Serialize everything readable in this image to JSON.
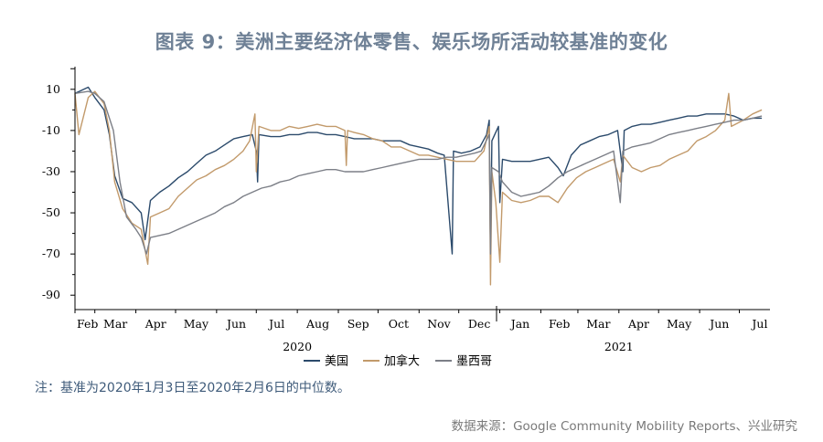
{
  "title": "图表 9：美洲主要经济体零售、娱乐场所活动较基准的变化",
  "note": "注：基准为2020年1月3日至2020年2月6日的中位数。",
  "source": "数据来源：Google Community Mobility Reports、兴业研究",
  "chart_data": {
    "type": "line",
    "y_ticks": [
      10,
      -10,
      -30,
      -50,
      -70,
      -90
    ],
    "ylim": [
      -97,
      21
    ],
    "x_ticks": [
      "Feb",
      "Mar",
      "Apr",
      "May",
      "Jun",
      "Jul",
      "Aug",
      "Sep",
      "Oct",
      "Nov",
      "Dec",
      "Jan",
      "Feb",
      "Mar",
      "Apr",
      "May",
      "Jun",
      "Jul"
    ],
    "x_tick_months": [
      "2020-02",
      "2020-03",
      "2020-04",
      "2020-05",
      "2020-06",
      "2020-07",
      "2020-08",
      "2020-09",
      "2020-10",
      "2020-11",
      "2020-12",
      "2021-01",
      "2021-02",
      "2021-03",
      "2021-04",
      "2021-05",
      "2021-06",
      "2021-07"
    ],
    "year_labels": [
      {
        "label": "2020",
        "month": "2020-08"
      },
      {
        "label": "2021",
        "month": "2021-04"
      }
    ],
    "xlim": [
      "2020-02-15",
      "2021-07-20"
    ],
    "legend_position": "bottom-center",
    "series": [
      {
        "name": "美国",
        "color": "#2b4a6b",
        "points": [
          [
            "2020-02-15",
            8
          ],
          [
            "2020-02-25",
            11
          ],
          [
            "2020-03-01",
            6
          ],
          [
            "2020-03-08",
            0
          ],
          [
            "2020-03-12",
            -12
          ],
          [
            "2020-03-16",
            -32
          ],
          [
            "2020-03-22",
            -43
          ],
          [
            "2020-03-29",
            -45
          ],
          [
            "2020-04-05",
            -50
          ],
          [
            "2020-04-08",
            -63
          ],
          [
            "2020-04-12",
            -44
          ],
          [
            "2020-04-19",
            -40
          ],
          [
            "2020-04-26",
            -37
          ],
          [
            "2020-05-03",
            -33
          ],
          [
            "2020-05-10",
            -30
          ],
          [
            "2020-05-17",
            -26
          ],
          [
            "2020-05-24",
            -22
          ],
          [
            "2020-05-31",
            -20
          ],
          [
            "2020-06-07",
            -17
          ],
          [
            "2020-06-14",
            -14
          ],
          [
            "2020-06-21",
            -13
          ],
          [
            "2020-06-28",
            -12
          ],
          [
            "2020-07-01",
            -20
          ],
          [
            "2020-07-02",
            -35
          ],
          [
            "2020-07-03",
            -12
          ],
          [
            "2020-07-12",
            -13
          ],
          [
            "2020-07-19",
            -13
          ],
          [
            "2020-07-26",
            -12
          ],
          [
            "2020-08-02",
            -12
          ],
          [
            "2020-08-09",
            -11
          ],
          [
            "2020-08-16",
            -11
          ],
          [
            "2020-08-23",
            -12
          ],
          [
            "2020-08-30",
            -12
          ],
          [
            "2020-09-06",
            -13
          ],
          [
            "2020-09-13",
            -14
          ],
          [
            "2020-09-20",
            -14
          ],
          [
            "2020-09-27",
            -14
          ],
          [
            "2020-10-04",
            -15
          ],
          [
            "2020-10-11",
            -15
          ],
          [
            "2020-10-18",
            -15
          ],
          [
            "2020-10-25",
            -17
          ],
          [
            "2020-11-01",
            -18
          ],
          [
            "2020-11-08",
            -19
          ],
          [
            "2020-11-15",
            -21
          ],
          [
            "2020-11-20",
            -22
          ],
          [
            "2020-11-26",
            -70
          ],
          [
            "2020-11-27",
            -20
          ],
          [
            "2020-12-03",
            -21
          ],
          [
            "2020-12-10",
            -20
          ],
          [
            "2020-12-17",
            -18
          ],
          [
            "2020-12-22",
            -12
          ],
          [
            "2020-12-24",
            -5
          ],
          [
            "2020-12-25",
            -70
          ],
          [
            "2020-12-26",
            -15
          ],
          [
            "2020-12-31",
            -8
          ],
          [
            "2021-01-01",
            -45
          ],
          [
            "2021-01-03",
            -24
          ],
          [
            "2021-01-10",
            -25
          ],
          [
            "2021-01-17",
            -25
          ],
          [
            "2021-01-24",
            -25
          ],
          [
            "2021-01-31",
            -24
          ],
          [
            "2021-02-07",
            -23
          ],
          [
            "2021-02-14",
            -28
          ],
          [
            "2021-02-18",
            -32
          ],
          [
            "2021-02-24",
            -22
          ],
          [
            "2021-03-03",
            -17
          ],
          [
            "2021-03-10",
            -15
          ],
          [
            "2021-03-17",
            -13
          ],
          [
            "2021-03-24",
            -12
          ],
          [
            "2021-03-31",
            -10
          ],
          [
            "2021-04-04",
            -30
          ],
          [
            "2021-04-05",
            -10
          ],
          [
            "2021-04-11",
            -8
          ],
          [
            "2021-04-18",
            -7
          ],
          [
            "2021-04-25",
            -7
          ],
          [
            "2021-05-02",
            -6
          ],
          [
            "2021-05-09",
            -5
          ],
          [
            "2021-05-16",
            -4
          ],
          [
            "2021-05-23",
            -3
          ],
          [
            "2021-05-30",
            -3
          ],
          [
            "2021-06-06",
            -2
          ],
          [
            "2021-06-13",
            -2
          ],
          [
            "2021-06-20",
            -2
          ],
          [
            "2021-06-27",
            -3
          ],
          [
            "2021-07-04",
            -5
          ],
          [
            "2021-07-11",
            -4
          ],
          [
            "2021-07-18",
            -4
          ]
        ]
      },
      {
        "name": "加拿大",
        "color": "#c29a6b",
        "points": [
          [
            "2020-02-15",
            8
          ],
          [
            "2020-02-18",
            -12
          ],
          [
            "2020-02-25",
            6
          ],
          [
            "2020-03-01",
            9
          ],
          [
            "2020-03-08",
            3
          ],
          [
            "2020-03-12",
            -10
          ],
          [
            "2020-03-16",
            -35
          ],
          [
            "2020-03-22",
            -48
          ],
          [
            "2020-03-29",
            -55
          ],
          [
            "2020-04-05",
            -58
          ],
          [
            "2020-04-10",
            -75
          ],
          [
            "2020-04-12",
            -52
          ],
          [
            "2020-04-19",
            -50
          ],
          [
            "2020-04-26",
            -48
          ],
          [
            "2020-05-03",
            -42
          ],
          [
            "2020-05-10",
            -38
          ],
          [
            "2020-05-17",
            -34
          ],
          [
            "2020-05-24",
            -32
          ],
          [
            "2020-05-31",
            -29
          ],
          [
            "2020-06-07",
            -27
          ],
          [
            "2020-06-14",
            -24
          ],
          [
            "2020-06-21",
            -20
          ],
          [
            "2020-06-26",
            -15
          ],
          [
            "2020-06-30",
            -2
          ],
          [
            "2020-07-01",
            -30
          ],
          [
            "2020-07-03",
            -8
          ],
          [
            "2020-07-12",
            -10
          ],
          [
            "2020-07-19",
            -10
          ],
          [
            "2020-07-26",
            -8
          ],
          [
            "2020-08-02",
            -9
          ],
          [
            "2020-08-09",
            -8
          ],
          [
            "2020-08-16",
            -7
          ],
          [
            "2020-08-23",
            -8
          ],
          [
            "2020-08-30",
            -8
          ],
          [
            "2020-09-06",
            -10
          ],
          [
            "2020-09-07",
            -27
          ],
          [
            "2020-09-08",
            -10
          ],
          [
            "2020-09-13",
            -11
          ],
          [
            "2020-09-20",
            -12
          ],
          [
            "2020-09-27",
            -14
          ],
          [
            "2020-10-04",
            -15
          ],
          [
            "2020-10-11",
            -18
          ],
          [
            "2020-10-18",
            -18
          ],
          [
            "2020-10-25",
            -20
          ],
          [
            "2020-11-01",
            -22
          ],
          [
            "2020-11-08",
            -22
          ],
          [
            "2020-11-15",
            -23
          ],
          [
            "2020-11-22",
            -24
          ],
          [
            "2020-11-29",
            -25
          ],
          [
            "2020-12-06",
            -25
          ],
          [
            "2020-12-13",
            -25
          ],
          [
            "2020-12-20",
            -20
          ],
          [
            "2020-12-24",
            -8
          ],
          [
            "2020-12-25",
            -85
          ],
          [
            "2020-12-26",
            -30
          ],
          [
            "2020-12-29",
            -45
          ],
          [
            "2021-01-01",
            -74
          ],
          [
            "2021-01-03",
            -40
          ],
          [
            "2021-01-10",
            -44
          ],
          [
            "2021-01-17",
            -45
          ],
          [
            "2021-01-24",
            -44
          ],
          [
            "2021-01-31",
            -42
          ],
          [
            "2021-02-07",
            -42
          ],
          [
            "2021-02-14",
            -45
          ],
          [
            "2021-02-21",
            -38
          ],
          [
            "2021-02-28",
            -33
          ],
          [
            "2021-03-07",
            -30
          ],
          [
            "2021-03-14",
            -28
          ],
          [
            "2021-03-21",
            -26
          ],
          [
            "2021-03-28",
            -24
          ],
          [
            "2021-04-02",
            -35
          ],
          [
            "2021-04-04",
            -22
          ],
          [
            "2021-04-11",
            -28
          ],
          [
            "2021-04-18",
            -30
          ],
          [
            "2021-04-25",
            -28
          ],
          [
            "2021-05-02",
            -27
          ],
          [
            "2021-05-09",
            -24
          ],
          [
            "2021-05-16",
            -22
          ],
          [
            "2021-05-23",
            -20
          ],
          [
            "2021-05-30",
            -15
          ],
          [
            "2021-06-06",
            -13
          ],
          [
            "2021-06-13",
            -10
          ],
          [
            "2021-06-20",
            -5
          ],
          [
            "2021-06-23",
            8
          ],
          [
            "2021-06-25",
            -8
          ],
          [
            "2021-07-04",
            -5
          ],
          [
            "2021-07-11",
            -2
          ],
          [
            "2021-07-18",
            0
          ]
        ]
      },
      {
        "name": "墨西哥",
        "color": "#7c7f87",
        "points": [
          [
            "2020-02-15",
            8
          ],
          [
            "2020-02-25",
            9
          ],
          [
            "2020-03-01",
            8
          ],
          [
            "2020-03-08",
            4
          ],
          [
            "2020-03-15",
            -10
          ],
          [
            "2020-03-20",
            -35
          ],
          [
            "2020-03-25",
            -52
          ],
          [
            "2020-04-01",
            -58
          ],
          [
            "2020-04-05",
            -62
          ],
          [
            "2020-04-09",
            -70
          ],
          [
            "2020-04-12",
            -62
          ],
          [
            "2020-04-19",
            -61
          ],
          [
            "2020-04-26",
            -60
          ],
          [
            "2020-05-03",
            -58
          ],
          [
            "2020-05-10",
            -56
          ],
          [
            "2020-05-17",
            -54
          ],
          [
            "2020-05-24",
            -52
          ],
          [
            "2020-05-31",
            -50
          ],
          [
            "2020-06-07",
            -47
          ],
          [
            "2020-06-14",
            -45
          ],
          [
            "2020-06-21",
            -42
          ],
          [
            "2020-06-28",
            -40
          ],
          [
            "2020-07-05",
            -38
          ],
          [
            "2020-07-12",
            -37
          ],
          [
            "2020-07-19",
            -35
          ],
          [
            "2020-07-26",
            -34
          ],
          [
            "2020-08-02",
            -32
          ],
          [
            "2020-08-09",
            -31
          ],
          [
            "2020-08-16",
            -30
          ],
          [
            "2020-08-23",
            -29
          ],
          [
            "2020-08-30",
            -29
          ],
          [
            "2020-09-06",
            -30
          ],
          [
            "2020-09-13",
            -30
          ],
          [
            "2020-09-20",
            -30
          ],
          [
            "2020-09-27",
            -29
          ],
          [
            "2020-10-04",
            -28
          ],
          [
            "2020-10-11",
            -27
          ],
          [
            "2020-10-18",
            -26
          ],
          [
            "2020-10-25",
            -25
          ],
          [
            "2020-11-01",
            -24
          ],
          [
            "2020-11-08",
            -24
          ],
          [
            "2020-11-15",
            -24
          ],
          [
            "2020-11-22",
            -23
          ],
          [
            "2020-11-29",
            -23
          ],
          [
            "2020-12-06",
            -22
          ],
          [
            "2020-12-13",
            -21
          ],
          [
            "2020-12-18",
            -20
          ],
          [
            "2020-12-24",
            -12
          ],
          [
            "2020-12-25",
            -70
          ],
          [
            "2020-12-26",
            -28
          ],
          [
            "2020-12-31",
            -30
          ],
          [
            "2021-01-03",
            -35
          ],
          [
            "2021-01-10",
            -40
          ],
          [
            "2021-01-17",
            -42
          ],
          [
            "2021-01-24",
            -41
          ],
          [
            "2021-01-31",
            -40
          ],
          [
            "2021-02-07",
            -37
          ],
          [
            "2021-02-14",
            -33
          ],
          [
            "2021-02-21",
            -30
          ],
          [
            "2021-02-28",
            -28
          ],
          [
            "2021-03-07",
            -26
          ],
          [
            "2021-03-14",
            -24
          ],
          [
            "2021-03-21",
            -22
          ],
          [
            "2021-03-28",
            -20
          ],
          [
            "2021-04-02",
            -45
          ],
          [
            "2021-04-04",
            -20
          ],
          [
            "2021-04-11",
            -18
          ],
          [
            "2021-04-18",
            -17
          ],
          [
            "2021-04-25",
            -16
          ],
          [
            "2021-05-02",
            -14
          ],
          [
            "2021-05-09",
            -12
          ],
          [
            "2021-05-16",
            -11
          ],
          [
            "2021-05-23",
            -10
          ],
          [
            "2021-05-30",
            -9
          ],
          [
            "2021-06-06",
            -8
          ],
          [
            "2021-06-13",
            -7
          ],
          [
            "2021-06-20",
            -6
          ],
          [
            "2021-06-27",
            -5
          ],
          [
            "2021-07-04",
            -5
          ],
          [
            "2021-07-11",
            -4
          ],
          [
            "2021-07-18",
            -3
          ]
        ]
      }
    ]
  }
}
